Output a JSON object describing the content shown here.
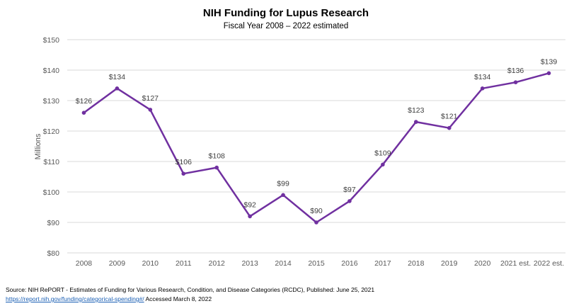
{
  "chart_data": {
    "type": "line",
    "title": "NIH Funding for Lupus Research",
    "subtitle": "Fiscal Year 2008 – 2022 estimated",
    "ylabel": "Millions",
    "xlabel": "",
    "categories": [
      "2008",
      "2009",
      "2010",
      "2011",
      "2012",
      "2013",
      "2014",
      "2015",
      "2016",
      "2017",
      "2018",
      "2019",
      "2020",
      "2021 est.",
      "2022 est."
    ],
    "values": [
      126,
      134,
      127,
      106,
      108,
      92,
      99,
      90,
      97,
      109,
      123,
      121,
      134,
      136,
      139
    ],
    "data_labels": [
      "$126",
      "$134",
      "$127",
      "$106",
      "$108",
      "$92",
      "$99",
      "$90",
      "$97",
      "$109",
      "$123",
      "$121",
      "$134",
      "$136",
      "$139"
    ],
    "ylim": [
      80,
      150
    ],
    "yticks": [
      80,
      90,
      100,
      110,
      120,
      130,
      140,
      150
    ],
    "ytick_labels": [
      "$80",
      "$90",
      "$100",
      "$110",
      "$120",
      "$130",
      "$140",
      "$150"
    ],
    "grid": "horizontal",
    "colors": {
      "line": "#7030a0",
      "grid": "#d9d9d9"
    }
  },
  "source": {
    "line1": "Source: NIH RePORT - Estimates of Funding for Various Research, Condition, and Disease Categories (RCDC), Published: June 25, 2021",
    "link": "https://report.nih.gov/funding/categorical-spending#/",
    "accessed": " Accessed March 8, 2022"
  }
}
